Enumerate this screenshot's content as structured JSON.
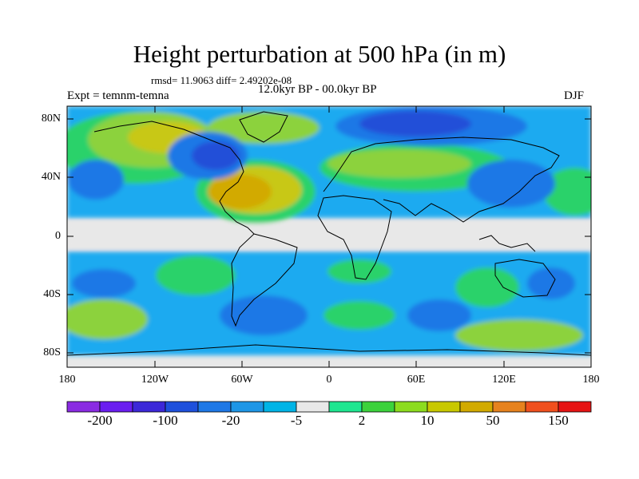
{
  "title": "Height perturbation at 500 hPa (in m)",
  "stats": "rmsd= 11.9063 diff= 2.49202e-08",
  "left_label": "Expt = temnm-temna",
  "center_label": "12.0kyr BP - 00.0kyr BP",
  "right_label": "DJF",
  "lat_ticks": [
    "80N",
    "40N",
    "0",
    "40S",
    "80S"
  ],
  "lon_ticks": [
    "180",
    "120W",
    "60W",
    "0",
    "60E",
    "120E",
    "180"
  ],
  "colorbar": {
    "colors": [
      "#8a2be2",
      "#6a1ef0",
      "#3c28d8",
      "#1e50dc",
      "#1e78e6",
      "#1e96e6",
      "#00b4e6",
      "#e8e8e8",
      "#1ee690",
      "#3cd23c",
      "#8cdc1e",
      "#c8c800",
      "#d2aa00",
      "#e6821e",
      "#f0501e",
      "#e61414"
    ],
    "labels": [
      "-200",
      "-100",
      "-20",
      "-5",
      "2",
      "10",
      "50",
      "150"
    ]
  },
  "field_colors": {
    "blue_dark": "#2050d8",
    "blue": "#1e78e6",
    "cyan": "#1eaaf0",
    "neutral": "#e8e8e8",
    "green": "#2ad26a",
    "lime": "#8cd23c",
    "yellow_green": "#c8c814",
    "gold": "#d2aa00"
  }
}
